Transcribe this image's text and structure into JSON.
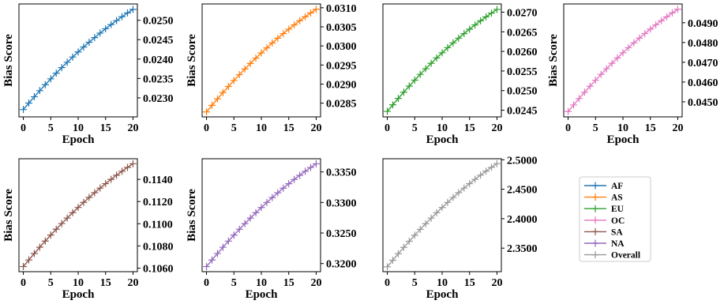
{
  "chart_data": [
    {
      "type": "line",
      "xlabel": "Epoch",
      "ylabel": "Bias Score",
      "xticks": [
        0,
        5,
        10,
        15,
        20
      ],
      "xlim": [
        -0.8,
        20.8
      ],
      "yticks": [
        0.023,
        0.0235,
        0.024,
        0.0245,
        0.025
      ],
      "ytick_labels": [
        "0.0230",
        "0.0235",
        "0.0240",
        "0.0245",
        "0.0250"
      ],
      "ylim": [
        0.02251,
        0.02542
      ],
      "y_axis_side": "right",
      "series": [
        {
          "name": "AF",
          "color": "#1f77b4",
          "marker": "plus",
          "x_start": 0,
          "x_end": 20,
          "y_start": 0.0227,
          "y_end": 0.02528
        }
      ]
    },
    {
      "type": "line",
      "xlabel": "",
      "ylabel": "Bias Score",
      "xticks": [
        0,
        5,
        10,
        15,
        20
      ],
      "xlim": [
        -0.8,
        20.8
      ],
      "yticks": [
        0.0285,
        0.029,
        0.0295,
        0.03,
        0.0305,
        0.031
      ],
      "ytick_labels": [
        "0.0285",
        "0.0290",
        "0.0295",
        "0.0300",
        "0.0305",
        "0.0310"
      ],
      "ylim": [
        0.02814,
        0.0311
      ],
      "y_axis_side": "right",
      "series": [
        {
          "name": "AS",
          "color": "#ff7f0e",
          "marker": "plus",
          "x_start": 0,
          "x_end": 20,
          "y_start": 0.02827,
          "y_end": 0.03096
        }
      ]
    },
    {
      "type": "line",
      "xlabel": "Epoch",
      "ylabel": "",
      "xticks": [
        0,
        5,
        10,
        15,
        20
      ],
      "xlim": [
        -0.8,
        20.8
      ],
      "yticks": [
        0.0245,
        0.025,
        0.0255,
        0.026,
        0.0265,
        0.027
      ],
      "ytick_labels": [
        "0.0245",
        "0.0250",
        "0.0255",
        "0.0260",
        "0.0265",
        "0.0270"
      ],
      "ylim": [
        0.02433,
        0.02721
      ],
      "y_axis_side": "right",
      "series": [
        {
          "name": "EU",
          "color": "#2ca02c",
          "marker": "plus",
          "x_start": 0,
          "x_end": 20,
          "y_start": 0.02447,
          "y_end": 0.02707
        }
      ]
    },
    {
      "type": "line",
      "xlabel": "Epoch",
      "ylabel": "Bias Score",
      "xticks": [
        0,
        5,
        10,
        15,
        20
      ],
      "xlim": [
        -0.8,
        20.8
      ],
      "yticks": [
        0.045,
        0.046,
        0.047,
        0.048,
        0.049
      ],
      "ytick_labels": [
        "0.0450",
        "0.0460",
        "0.0470",
        "0.0480",
        "0.0490"
      ],
      "ylim": [
        0.04424,
        0.04995
      ],
      "y_axis_side": "right",
      "series": [
        {
          "name": "OC",
          "color": "#e377c2",
          "marker": "plus",
          "x_start": 0,
          "x_end": 20,
          "y_start": 0.04451,
          "y_end": 0.04968
        }
      ]
    },
    {
      "type": "line",
      "xlabel": "Epoch",
      "ylabel": "Bias Score",
      "xticks": [
        0,
        5,
        10,
        15,
        20
      ],
      "xlim": [
        -0.8,
        20.8
      ],
      "yticks": [
        0.106,
        0.108,
        0.11,
        0.112,
        0.114
      ],
      "ytick_labels": [
        "0.1060",
        "0.1080",
        "0.1100",
        "0.1120",
        "0.1140"
      ],
      "ylim": [
        0.10568,
        0.11586
      ],
      "y_axis_side": "right",
      "series": [
        {
          "name": "SA",
          "color": "#8c564b",
          "marker": "plus",
          "x_start": 0,
          "x_end": 20,
          "y_start": 0.10614,
          "y_end": 0.11541
        }
      ]
    },
    {
      "type": "line",
      "xlabel": "Epoch",
      "ylabel": "Bias Score",
      "xticks": [
        0,
        5,
        10,
        15,
        20
      ],
      "xlim": [
        -0.8,
        20.8
      ],
      "yticks": [
        0.32,
        0.325,
        0.33,
        0.335
      ],
      "ytick_labels": [
        "0.3200",
        "0.3250",
        "0.3300",
        "0.3350"
      ],
      "ylim": [
        0.31867,
        0.33716
      ],
      "y_axis_side": "right",
      "series": [
        {
          "name": "NA",
          "color": "#9467bd",
          "marker": "plus",
          "x_start": 0,
          "x_end": 20,
          "y_start": 0.3195,
          "y_end": 0.33633
        }
      ]
    },
    {
      "type": "line",
      "xlabel": "Epoch",
      "ylabel": "",
      "xticks": [
        0,
        5,
        10,
        15,
        20
      ],
      "xlim": [
        -0.8,
        20.8
      ],
      "yticks": [
        2.35,
        2.4,
        2.45,
        2.5
      ],
      "ytick_labels": [
        "2.3500",
        "2.4000",
        "2.4500",
        "2.5000"
      ],
      "ylim": [
        2.3101,
        2.5017
      ],
      "y_axis_side": "right",
      "series": [
        {
          "name": "Overall",
          "color": "#999999",
          "marker": "plus",
          "x_start": 0,
          "x_end": 20,
          "y_start": 2.3183,
          "y_end": 2.4934
        }
      ]
    }
  ],
  "legend": {
    "placement": "bottom-right",
    "entries": [
      {
        "label": "AF",
        "color": "#1f77b4"
      },
      {
        "label": "AS",
        "color": "#ff7f0e"
      },
      {
        "label": "EU",
        "color": "#2ca02c"
      },
      {
        "label": "OC",
        "color": "#e377c2"
      },
      {
        "label": "SA",
        "color": "#8c564b"
      },
      {
        "label": "NA",
        "color": "#9467bd"
      },
      {
        "label": "Overall",
        "color": "#999999"
      }
    ]
  }
}
